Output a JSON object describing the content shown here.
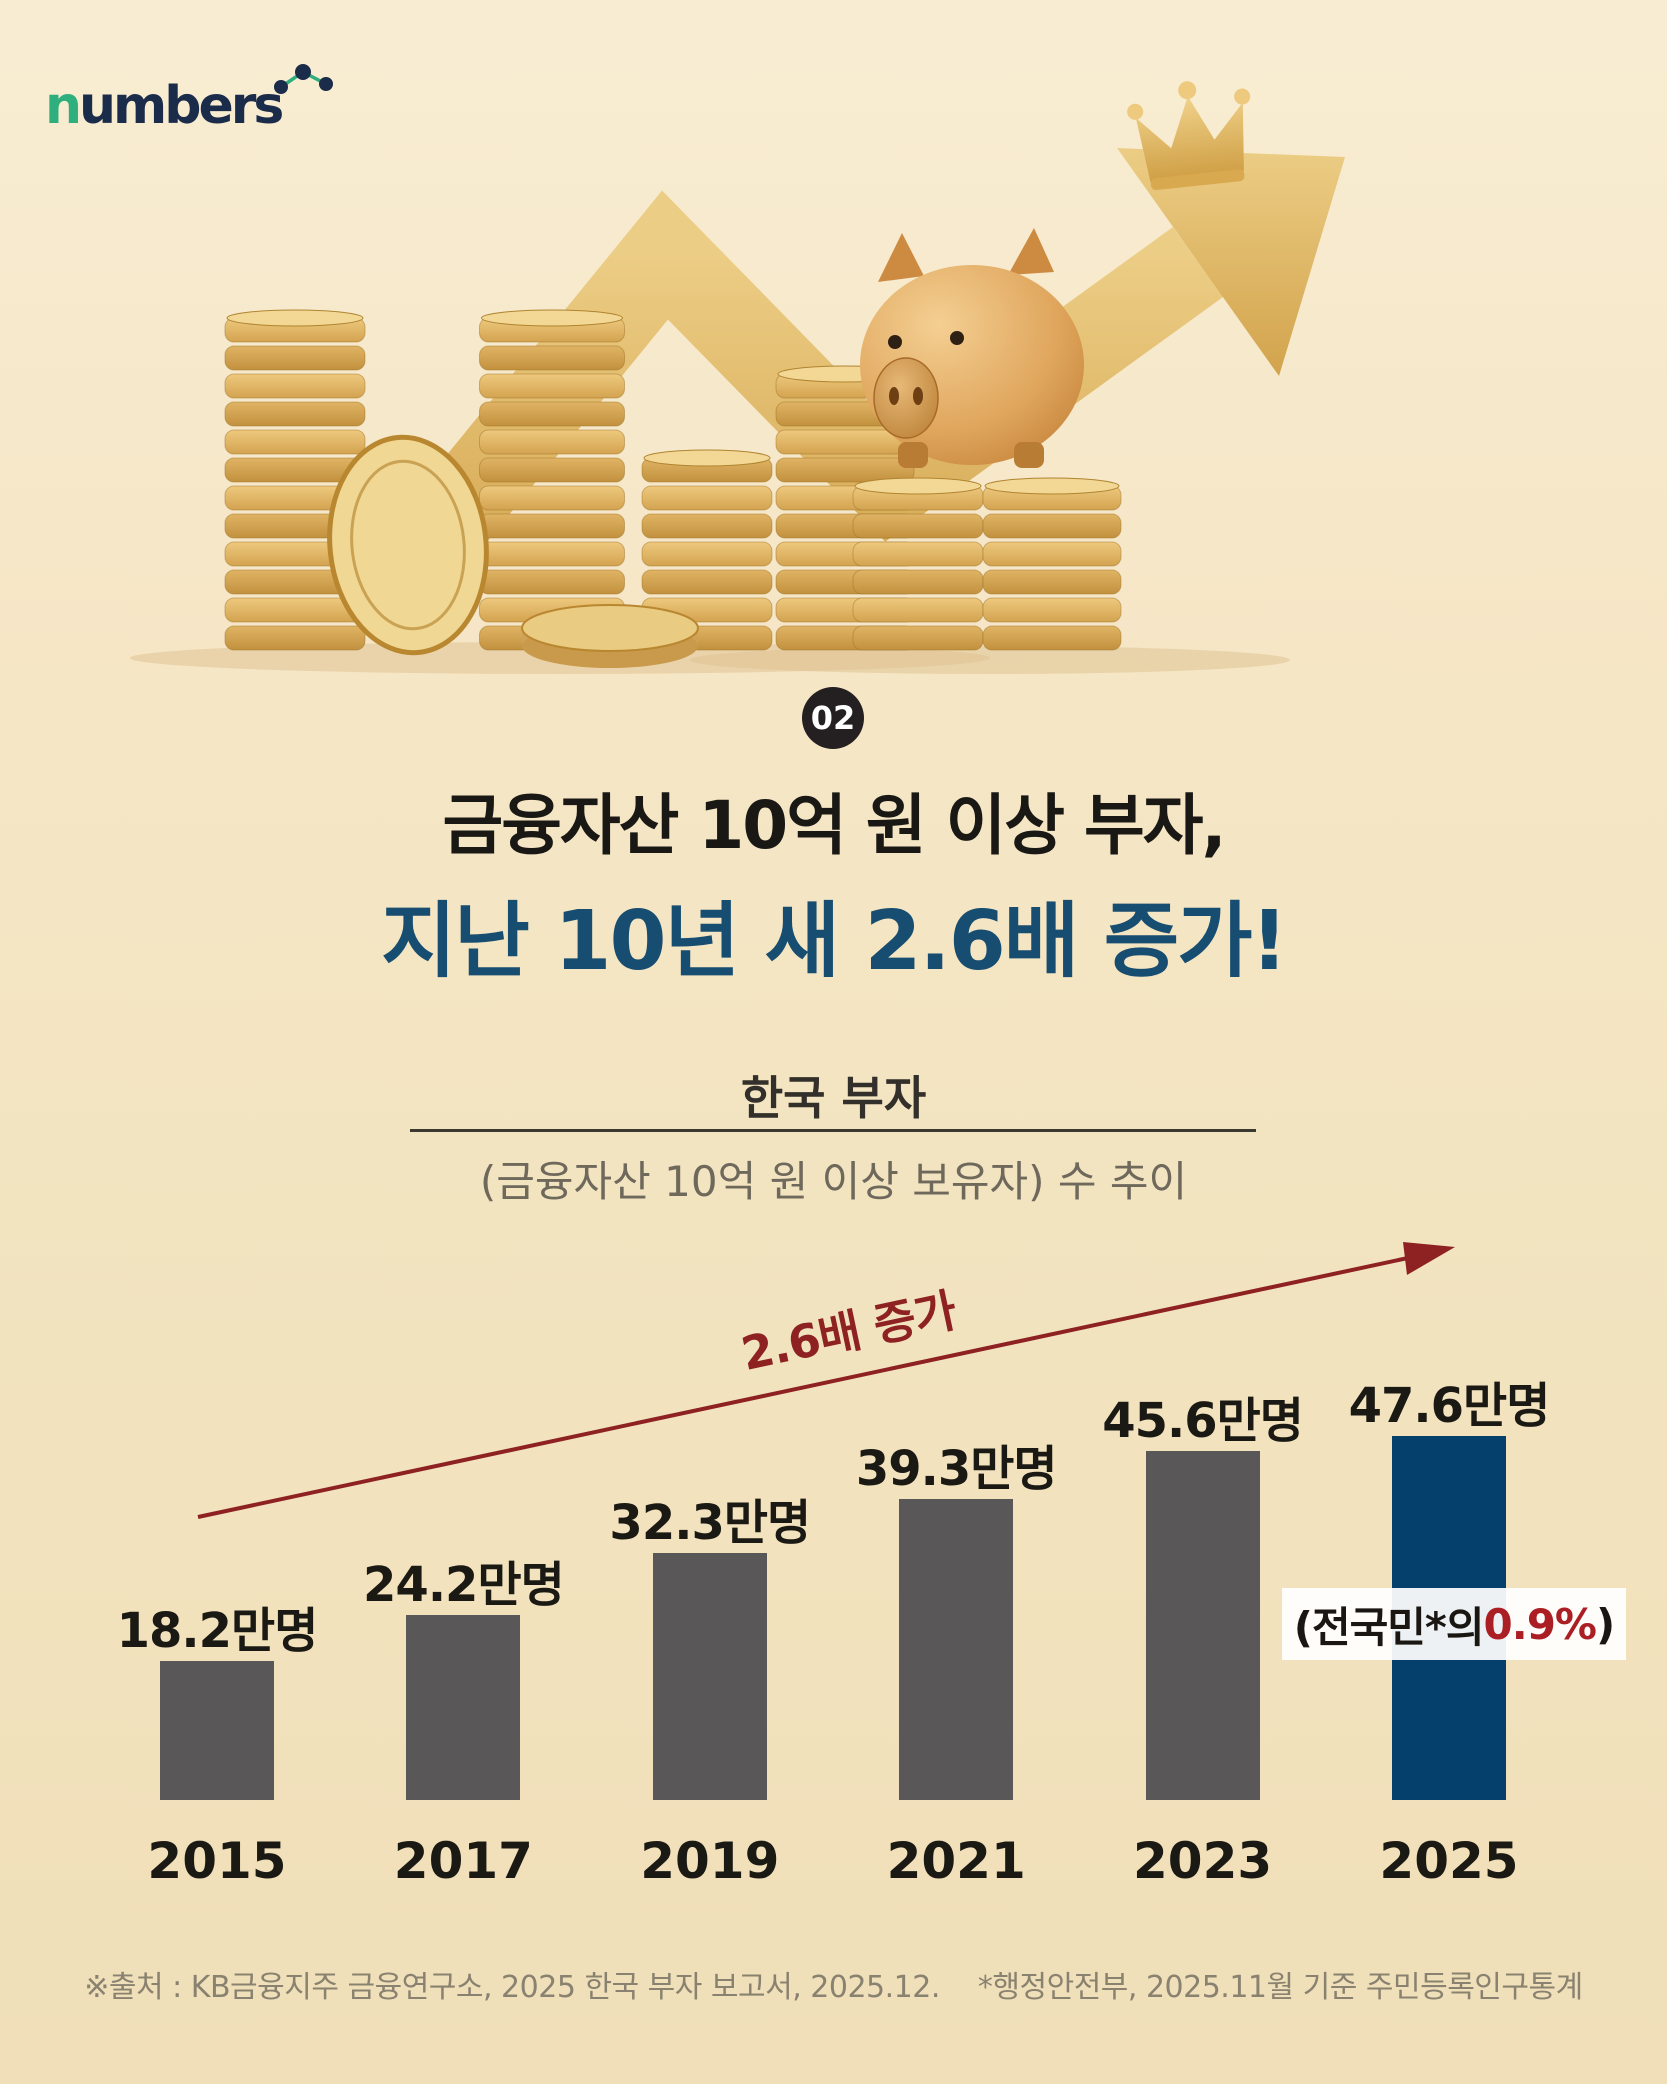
{
  "logo": {
    "text_n": "n",
    "text_rest": "umbers"
  },
  "section_badge": "02",
  "title": {
    "line1": "금융자산 10억 원 이상 부자,",
    "line2": "지난 10년 새 2.6배 증가!",
    "line2_color": "#174d70"
  },
  "chart_header": {
    "title": "한국 부자",
    "subtitle": "(금융자산 10억 원 이상 보유자) 수 추이"
  },
  "chart_data": {
    "type": "bar",
    "title": "한국 부자 (금융자산 10억 원 이상 보유자) 수 추이",
    "categories": [
      "2015",
      "2017",
      "2019",
      "2021",
      "2023",
      "2025"
    ],
    "values": [
      18.2,
      24.2,
      32.3,
      39.3,
      45.6,
      47.6
    ],
    "value_labels": [
      "18.2만명",
      "24.2만명",
      "32.3만명",
      "39.3만명",
      "45.6만명",
      "47.6만명"
    ],
    "unit": "만명",
    "ylim": [
      0,
      47.6
    ],
    "grid": false,
    "legend": null,
    "bar_color": "#595757",
    "highlight_index": 5,
    "highlight_color": "#04406b",
    "annotation": {
      "text": "2.6배 증가",
      "color": "#8e2222"
    },
    "callout": {
      "prefix": "(전국민*의 ",
      "value": "0.9%",
      "suffix": ")",
      "value_color": "#ab1f24"
    }
  },
  "source": {
    "part1": "※출처 : KB금융지주 금융연구소, 2025 한국 부자 보고서, 2025.12.",
    "part2": "*행정안전부, 2025.11월 기준 주민등록인구통계"
  }
}
